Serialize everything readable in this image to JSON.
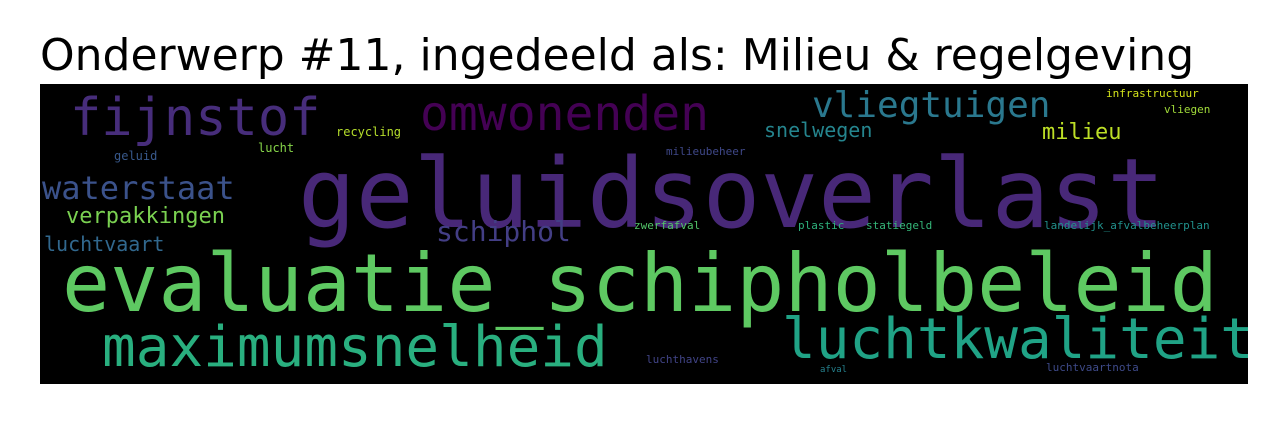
{
  "title": "Onderwerp #11, ingedeeld als: Milieu & regelgeving",
  "words": [
    {
      "text": "geluidsoverlast",
      "color": "#482878"
    },
    {
      "text": "evaluatie_schipholbeleid",
      "color": "#5ec962"
    },
    {
      "text": "maximumsnelheid",
      "color": "#29af7f"
    },
    {
      "text": "luchtkwaliteit",
      "color": "#20a386"
    },
    {
      "text": "fijnstof",
      "color": "#472d7b"
    },
    {
      "text": "omwonenden",
      "color": "#440154"
    },
    {
      "text": "vliegtuigen",
      "color": "#2a788e"
    },
    {
      "text": "waterstaat",
      "color": "#3b528b"
    },
    {
      "text": "verpakkingen",
      "color": "#7ad151"
    },
    {
      "text": "schiphol",
      "color": "#433e85"
    },
    {
      "text": "luchtvaart",
      "color": "#31688e"
    },
    {
      "text": "snelwegen",
      "color": "#25858e"
    },
    {
      "text": "milieu",
      "color": "#bddf26"
    },
    {
      "text": "infrastructuur",
      "color": "#d2e21b"
    },
    {
      "text": "vliegen",
      "color": "#a0da39"
    },
    {
      "text": "recycling",
      "color": "#b5de2b"
    },
    {
      "text": "lucht",
      "color": "#86d549"
    },
    {
      "text": "geluid",
      "color": "#38598c"
    },
    {
      "text": "milieubeheer",
      "color": "#3f4889"
    },
    {
      "text": "plastic",
      "color": "#2db27d"
    },
    {
      "text": "statiegeld",
      "color": "#35b779"
    },
    {
      "text": "zwerfafval",
      "color": "#52c569"
    },
    {
      "text": "landelijk_afvalbeheerplan",
      "color": "#21918c"
    },
    {
      "text": "luchthavens",
      "color": "#414487"
    },
    {
      "text": "luchtvaartnota",
      "color": "#3e4a89"
    },
    {
      "text": "afval",
      "color": "#26828e"
    }
  ]
}
